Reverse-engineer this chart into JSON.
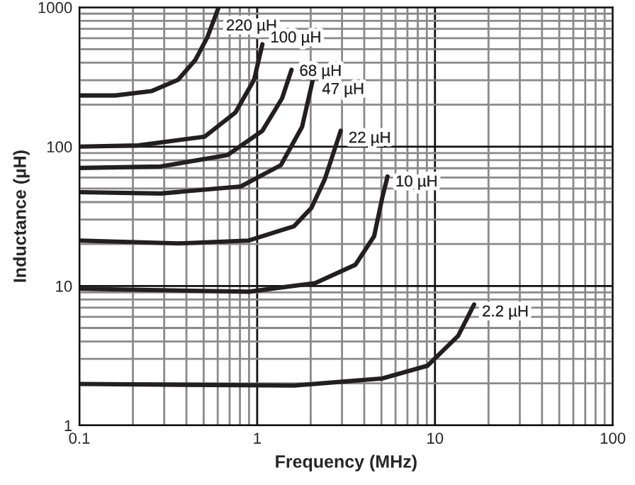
{
  "chart_data": {
    "type": "line",
    "xlabel": "Frequency (MHz)",
    "ylabel": "Inductance (µH)",
    "log": "xy",
    "grid": true,
    "legend": false,
    "marker": "none",
    "line_style": "solid",
    "xlim": [
      0.1,
      100
    ],
    "xticks": [
      0.1,
      1,
      10,
      100
    ],
    "ylim": [
      1,
      1000
    ],
    "yticks": [
      1,
      10,
      100,
      1000
    ],
    "series": [
      {
        "name": "220 µH",
        "color": "#231f20",
        "x": [
          0.1,
          0.159,
          0.254,
          0.359,
          0.449,
          0.525,
          0.603
        ],
        "values": [
          233,
          233,
          250,
          302,
          419,
          611,
          977
        ]
      },
      {
        "name": "100 µH",
        "color": "#231f20",
        "x": [
          0.1,
          0.214,
          0.507,
          0.755,
          0.961,
          1.07
        ],
        "values": [
          100,
          102,
          118,
          176,
          302,
          543
        ]
      },
      {
        "name": "68 µH",
        "color": "#231f20",
        "x": [
          0.1,
          0.287,
          0.68,
          1.07,
          1.38,
          1.56
        ],
        "values": [
          70.3,
          72.0,
          86.9,
          130,
          222,
          356
        ]
      },
      {
        "name": "47 µH",
        "color": "#231f20",
        "x": [
          0.1,
          0.287,
          0.809,
          1.36,
          1.79,
          2.09
        ],
        "values": [
          47.1,
          46.1,
          51.8,
          73.7,
          139,
          331
        ]
      },
      {
        "name": "22 µH",
        "color": "#231f20",
        "x": [
          0.1,
          0.359,
          0.897,
          1.61,
          2.02,
          2.4,
          2.95
        ],
        "values": [
          21.2,
          20.2,
          21.2,
          26.8,
          36.4,
          58.3,
          130
        ]
      },
      {
        "name": "10 µH",
        "color": "#231f20",
        "x": [
          0.1,
          0.897,
          2.12,
          3.57,
          4.55,
          5.05,
          5.41
        ],
        "values": [
          9.55,
          9.1,
          10.5,
          14.2,
          22.8,
          42.9,
          61.1
        ]
      },
      {
        "name": "2.2 µH",
        "color": "#231f20",
        "x": [
          0.1,
          1.61,
          5.05,
          9.08,
          13.5,
          16.6
        ],
        "values": [
          1.98,
          1.93,
          2.17,
          2.68,
          4.39,
          7.37
        ]
      }
    ]
  }
}
